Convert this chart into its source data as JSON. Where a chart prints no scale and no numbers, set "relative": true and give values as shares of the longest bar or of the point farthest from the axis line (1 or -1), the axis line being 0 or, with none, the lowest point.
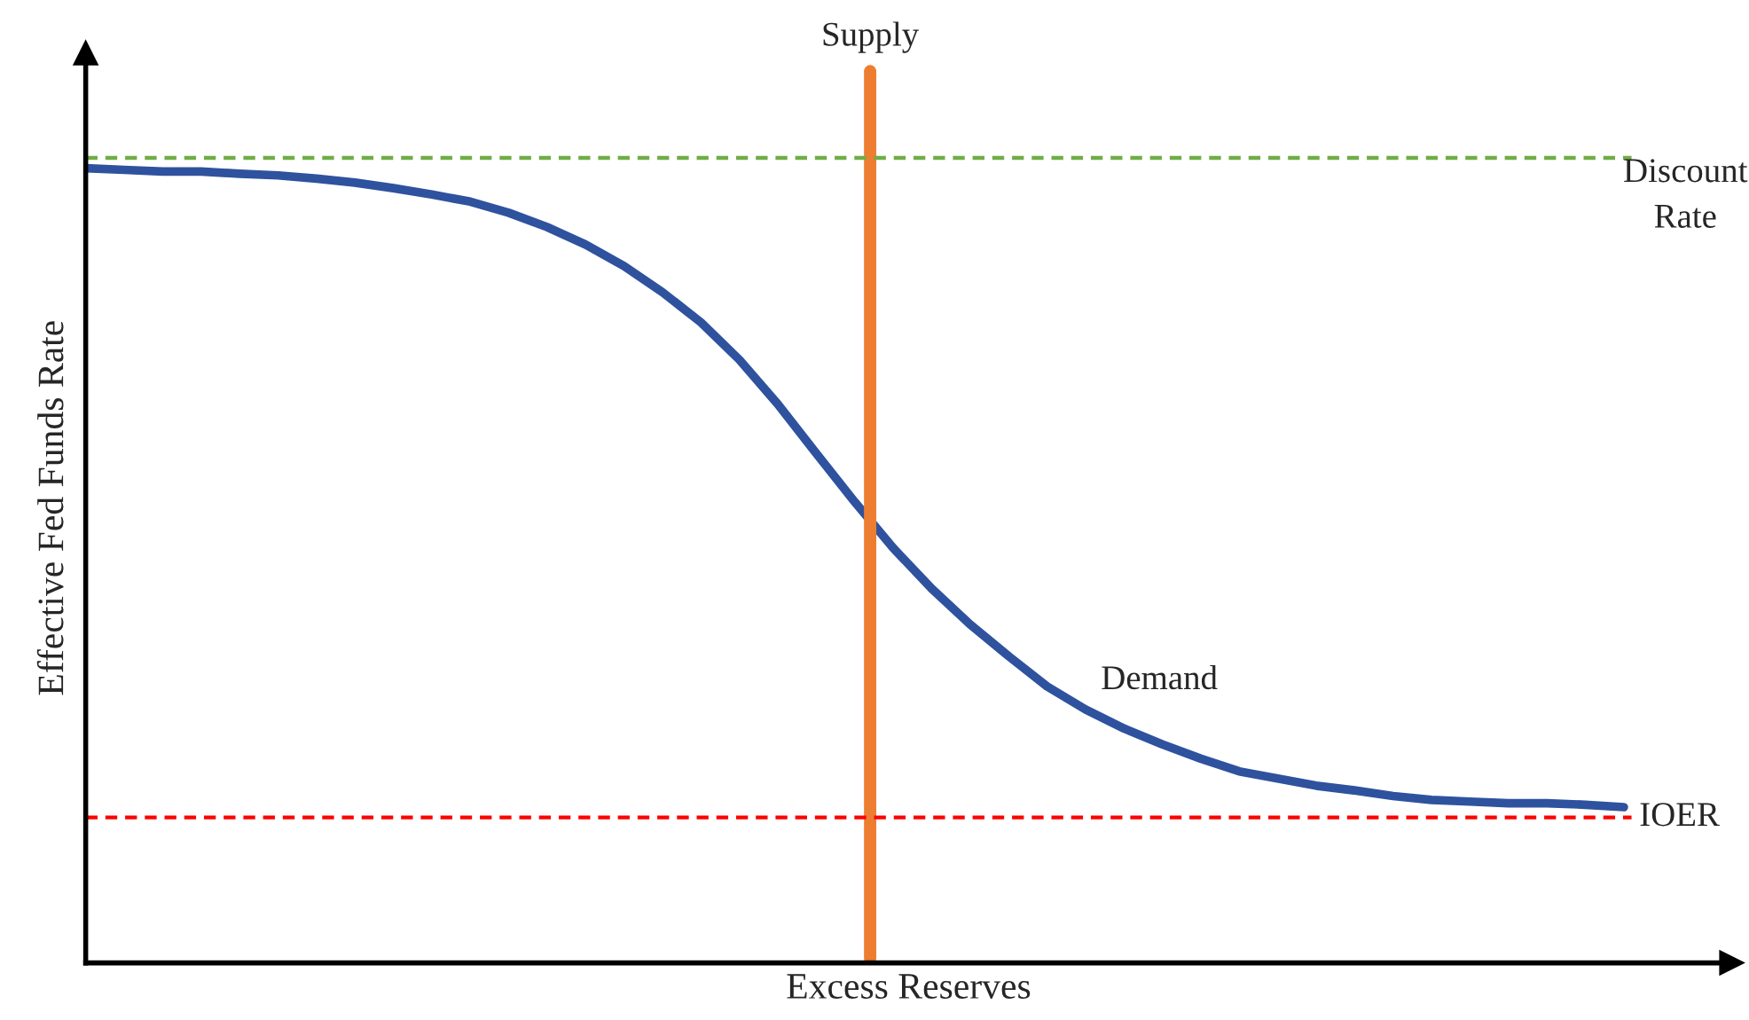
{
  "chart_data": {
    "type": "line",
    "relative": true,
    "xlabel": "Excess Reserves",
    "ylabel": "Effective Fed Funds Rate",
    "categories": [
      null,
      null,
      null,
      null,
      null,
      null,
      null,
      null,
      null,
      null,
      null,
      null,
      null,
      null,
      null,
      null,
      null,
      null,
      null,
      null,
      null,
      null,
      null,
      null,
      null,
      null,
      null,
      null,
      null,
      null,
      null,
      null,
      null,
      null,
      null,
      null,
      null,
      null,
      null,
      null,
      null
    ],
    "annotations": [
      "Supply"
    ],
    "series": [
      {
        "name": "Demand",
        "color": "#2f529f",
        "values": [
          1.0,
          0.998,
          0.996,
          0.996,
          0.993,
          0.991,
          0.987,
          0.982,
          0.975,
          0.967,
          0.958,
          0.944,
          0.926,
          0.904,
          0.877,
          0.844,
          0.806,
          0.759,
          0.703,
          0.641,
          0.58,
          0.522,
          0.471,
          0.426,
          0.386,
          0.348,
          0.319,
          0.295,
          0.275,
          0.257,
          0.241,
          0.232,
          0.223,
          0.217,
          0.21,
          0.205,
          0.203,
          0.201,
          0.201,
          0.199,
          0.196
        ]
      }
    ],
    "ref_lines": [
      {
        "axis": "y",
        "value": 1.013,
        "label": "Discount Rate",
        "color": "#70ad47",
        "line_style": "dashed"
      },
      {
        "axis": "y",
        "value": 0.183,
        "label": "IOER",
        "color": "#ff0000",
        "line_style": "dashed"
      }
    ],
    "tick_labels": false,
    "legend": false,
    "marker": "none",
    "line_style": "solid"
  }
}
